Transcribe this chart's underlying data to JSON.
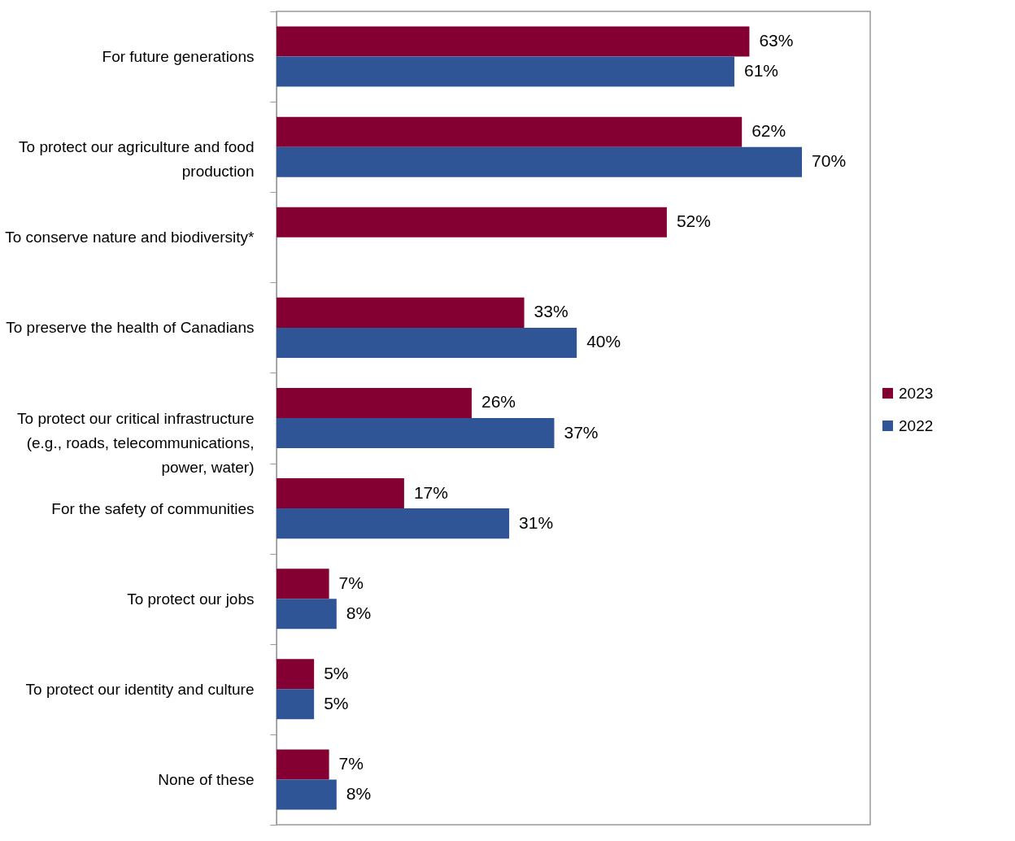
{
  "chart_data": {
    "type": "bar",
    "orientation": "horizontal",
    "categories": [
      "For future generations",
      "To protect our agriculture and food\nproduction",
      "To conserve nature and biodiversity*",
      "To preserve the health of Canadians",
      "To protect our critical infrastructure\n(e.g., roads, telecommunications,\npower, water)",
      "For the safety of communities",
      "To protect our jobs",
      "To protect our identity and culture",
      "None of these"
    ],
    "series": [
      {
        "name": "2023",
        "color": "#840032",
        "values": [
          63,
          62,
          52,
          33,
          26,
          17,
          7,
          5,
          7
        ],
        "value_labels": [
          "63%",
          "62%",
          "52%",
          "33%",
          "26%",
          "17%",
          "7%",
          "5%",
          "7%"
        ]
      },
      {
        "name": "2022",
        "color": "#2f5597",
        "values": [
          61,
          70,
          null,
          40,
          37,
          31,
          8,
          5,
          8
        ],
        "value_labels": [
          "61%",
          "70%",
          null,
          "40%",
          "37%",
          "31%",
          "8%",
          "5%",
          "8%"
        ]
      }
    ],
    "legend": "right"
  }
}
